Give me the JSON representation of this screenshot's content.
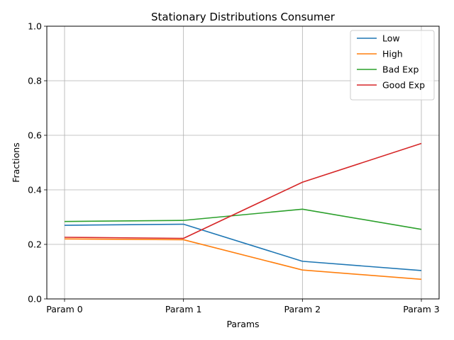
{
  "chart_data": {
    "type": "line",
    "title": "Stationary Distributions Consumer",
    "xlabel": "Params",
    "ylabel": "Fractions",
    "categories": [
      "Param 0",
      "Param 1",
      "Param 2",
      "Param 3"
    ],
    "ylim": [
      0,
      1
    ],
    "yticks": [
      "0.0",
      "0.2",
      "0.4",
      "0.6",
      "0.8",
      "1.0"
    ],
    "grid": true,
    "legend_position": "top-right",
    "series": [
      {
        "name": "Low",
        "color": "#1f77b4",
        "values": [
          0.27,
          0.274,
          0.138,
          0.104
        ]
      },
      {
        "name": "High",
        "color": "#ff7f0e",
        "values": [
          0.22,
          0.217,
          0.106,
          0.072
        ]
      },
      {
        "name": "Bad Exp",
        "color": "#2ca02c",
        "values": [
          0.284,
          0.288,
          0.329,
          0.255
        ]
      },
      {
        "name": "Good Exp",
        "color": "#d62728",
        "values": [
          0.226,
          0.222,
          0.428,
          0.57
        ]
      }
    ]
  }
}
